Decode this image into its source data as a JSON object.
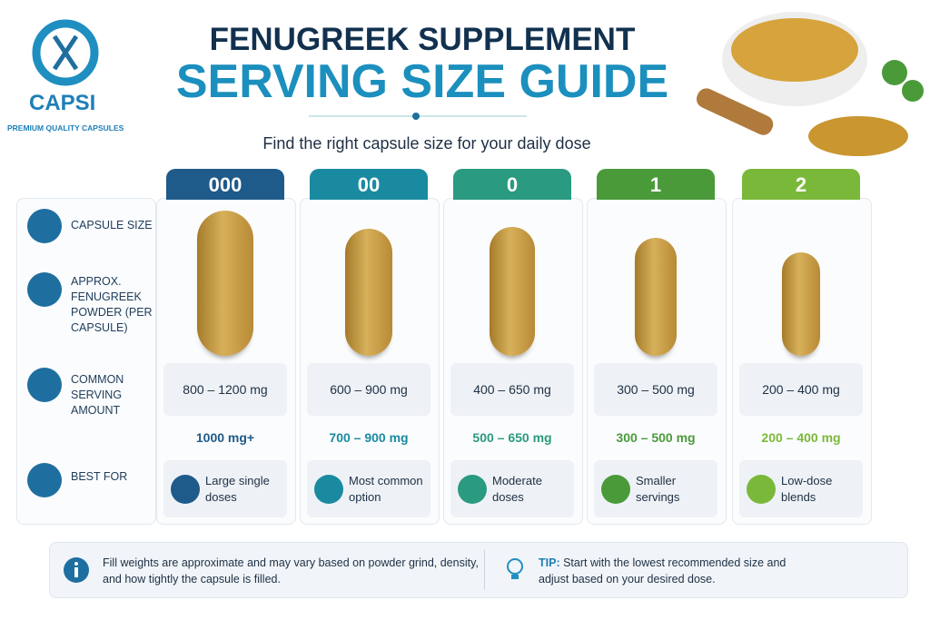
{
  "brand": {
    "name": "CAPSI",
    "tagline": "PREMIUM QUALITY CAPSULES"
  },
  "header": {
    "title_line1": "FENUGREEK SUPPLEMENT",
    "title_line2": "SERVING SIZE GUIDE",
    "subtitle": "Find the right capsule size for your daily dose"
  },
  "row_labels": [
    "CAPSULE SIZE",
    "APPROX. FENUGREEK POWDER (PER CAPSULE)",
    "COMMON SERVING AMOUNT",
    "BEST FOR"
  ],
  "columns": [
    {
      "size": "000",
      "powder": "800 – 1200 mg",
      "serving": "1000 mg+",
      "best_for": "Large single doses"
    },
    {
      "size": "00",
      "powder": "600 – 900 mg",
      "serving": "700 – 900 mg",
      "best_for": "Most common option"
    },
    {
      "size": "0",
      "powder": "400 – 650 mg",
      "serving": "500 – 650 mg",
      "best_for": "Moderate doses"
    },
    {
      "size": "1",
      "powder": "300 – 500 mg",
      "serving": "300 – 500 mg",
      "best_for": "Smaller servings"
    },
    {
      "size": "2",
      "powder": "200 – 400 mg",
      "serving": "200 – 400 mg",
      "best_for": "Low-dose blends"
    }
  ],
  "footer": {
    "note": "Fill weights are approximate and may vary based on powder grind, density, and how tightly the capsule is filled.",
    "tip_label": "TIP:",
    "tip": "Start with the lowest recommended size and adjust based on your desired dose."
  }
}
